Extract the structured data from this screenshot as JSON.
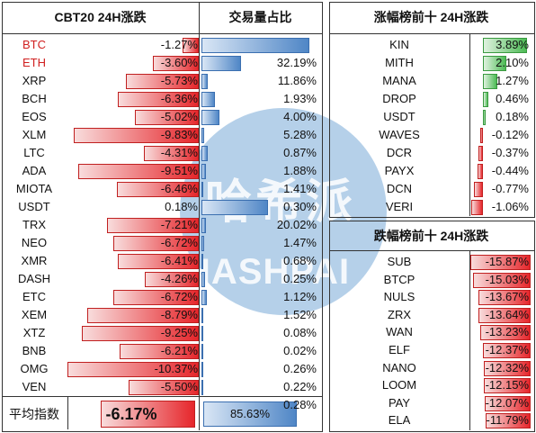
{
  "left": {
    "header_coin": "CBT20 24H涨跌",
    "header_vol": "交易量占比",
    "rows": [
      {
        "coin": "BTC",
        "change": "-1.27%",
        "volume": "32.19%",
        "chg": -1.27,
        "vol": 32.19,
        "highlight": true
      },
      {
        "coin": "ETH",
        "change": "-3.60%",
        "volume": "11.86%",
        "chg": -3.6,
        "vol": 11.86,
        "highlight": true
      },
      {
        "coin": "XRP",
        "change": "-5.73%",
        "volume": "1.93%",
        "chg": -5.73,
        "vol": 1.93
      },
      {
        "coin": "BCH",
        "change": "-6.36%",
        "volume": "4.00%",
        "chg": -6.36,
        "vol": 4.0
      },
      {
        "coin": "EOS",
        "change": "-5.02%",
        "volume": "5.28%",
        "chg": -5.02,
        "vol": 5.28
      },
      {
        "coin": "XLM",
        "change": "-9.83%",
        "volume": "0.87%",
        "chg": -9.83,
        "vol": 0.87
      },
      {
        "coin": "LTC",
        "change": "-4.31%",
        "volume": "1.88%",
        "chg": -4.31,
        "vol": 1.88
      },
      {
        "coin": "ADA",
        "change": "-9.51%",
        "volume": "1.41%",
        "chg": -9.51,
        "vol": 1.41
      },
      {
        "coin": "MIOTA",
        "change": "-6.46%",
        "volume": "0.30%",
        "chg": -6.46,
        "vol": 0.3
      },
      {
        "coin": "USDT",
        "change": "0.18%",
        "volume": "20.02%",
        "chg": 0.18,
        "vol": 20.02
      },
      {
        "coin": "TRX",
        "change": "-7.21%",
        "volume": "1.47%",
        "chg": -7.21,
        "vol": 1.47
      },
      {
        "coin": "NEO",
        "change": "-6.72%",
        "volume": "0.68%",
        "chg": -6.72,
        "vol": 0.68
      },
      {
        "coin": "XMR",
        "change": "-6.41%",
        "volume": "0.25%",
        "chg": -6.41,
        "vol": 0.25
      },
      {
        "coin": "DASH",
        "change": "-4.26%",
        "volume": "1.12%",
        "chg": -4.26,
        "vol": 1.12
      },
      {
        "coin": "ETC",
        "change": "-6.72%",
        "volume": "1.52%",
        "chg": -6.72,
        "vol": 1.52
      },
      {
        "coin": "XEM",
        "change": "-8.79%",
        "volume": "0.08%",
        "chg": -8.79,
        "vol": 0.08
      },
      {
        "coin": "XTZ",
        "change": "-9.25%",
        "volume": "0.02%",
        "chg": -9.25,
        "vol": 0.02
      },
      {
        "coin": "BNB",
        "change": "-6.21%",
        "volume": "0.26%",
        "chg": -6.21,
        "vol": 0.26
      },
      {
        "coin": "OMG",
        "change": "-10.37%",
        "volume": "0.22%",
        "chg": -10.37,
        "vol": 0.22
      },
      {
        "coin": "VEN",
        "change": "-5.50%",
        "volume": "0.28%",
        "chg": -5.5,
        "vol": 0.28
      }
    ],
    "footer_label": "平均指数",
    "footer_change": "-6.17%",
    "footer_volume": "85.63%"
  },
  "gainers": {
    "header": "涨幅榜前十 24H涨跌",
    "rows": [
      {
        "coin": "KIN",
        "change": "3.89%",
        "chg": 3.89
      },
      {
        "coin": "MITH",
        "change": "2.10%",
        "chg": 2.1
      },
      {
        "coin": "MANA",
        "change": "1.27%",
        "chg": 1.27
      },
      {
        "coin": "DROP",
        "change": "0.46%",
        "chg": 0.46
      },
      {
        "coin": "USDT",
        "change": "0.18%",
        "chg": 0.18
      },
      {
        "coin": "WAVES",
        "change": "-0.12%",
        "chg": -0.12
      },
      {
        "coin": "DCR",
        "change": "-0.37%",
        "chg": -0.37
      },
      {
        "coin": "PAYX",
        "change": "-0.44%",
        "chg": -0.44
      },
      {
        "coin": "DCN",
        "change": "-0.77%",
        "chg": -0.77
      },
      {
        "coin": "VERI",
        "change": "-1.06%",
        "chg": -1.06
      }
    ]
  },
  "losers": {
    "header": "跌幅榜前十 24H涨跌",
    "rows": [
      {
        "coin": "SUB",
        "change": "-15.87%",
        "chg": -15.87
      },
      {
        "coin": "BTCP",
        "change": "-15.03%",
        "chg": -15.03
      },
      {
        "coin": "NULS",
        "change": "-13.67%",
        "chg": -13.67
      },
      {
        "coin": "ZRX",
        "change": "-13.64%",
        "chg": -13.64
      },
      {
        "coin": "WAN",
        "change": "-13.23%",
        "chg": -13.23
      },
      {
        "coin": "ELF",
        "change": "-12.37%",
        "chg": -12.37
      },
      {
        "coin": "NANO",
        "change": "-12.32%",
        "chg": -12.32
      },
      {
        "coin": "LOOM",
        "change": "-12.15%",
        "chg": -12.15
      },
      {
        "coin": "PAY",
        "change": "-12.07%",
        "chg": -12.07
      },
      {
        "coin": "ELA",
        "change": "-11.79%",
        "chg": -11.79
      }
    ]
  },
  "watermark": {
    "cn": "哈希派",
    "en": "HASHPAI"
  },
  "colors": {
    "up": "#4dbb55",
    "down": "#e6262b",
    "volume": "#4f86c6",
    "highlight_text": "#d02020"
  }
}
